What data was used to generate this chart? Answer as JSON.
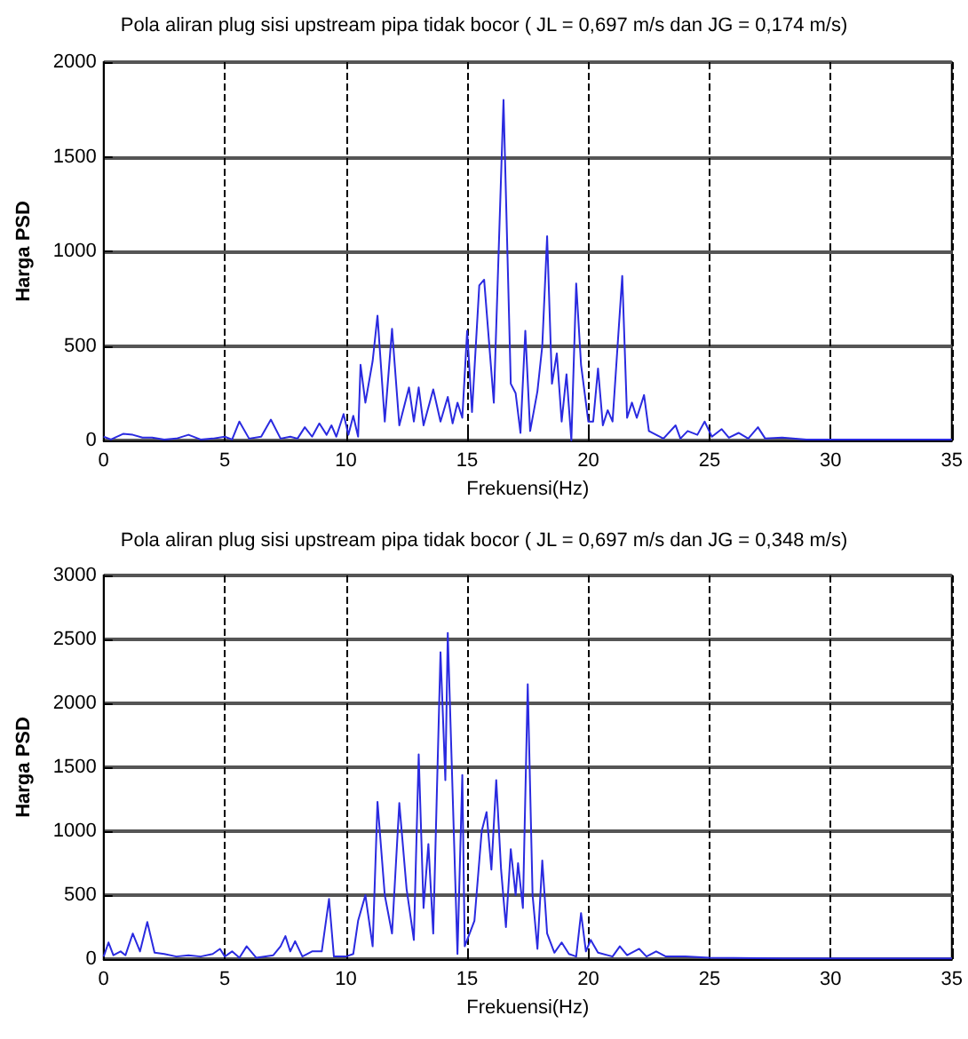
{
  "chart_data": [
    {
      "type": "line",
      "title": "Pola aliran plug sisi upstream pipa tidak bocor ( JL = 0,697 m/s dan JG = 0,174 m/s)",
      "xlabel": "Frekuensi(Hz)",
      "ylabel": "Harga PSD",
      "xlim": [
        0,
        35
      ],
      "xticks": [
        0,
        5,
        10,
        15,
        20,
        25,
        30,
        35
      ],
      "ylim": [
        0,
        2000
      ],
      "yticks": [
        0,
        500,
        1000,
        1500,
        2000
      ],
      "grid": true,
      "marker": "none",
      "line_style": "solid",
      "series": [
        {
          "color": "#2a2ae0",
          "x": [
            0,
            0.3,
            0.8,
            1.2,
            1.6,
            2,
            2.5,
            3,
            3.5,
            4,
            4.5,
            5,
            5.3,
            5.6,
            6,
            6.5,
            6.9,
            7.3,
            7.7,
            8,
            8.3,
            8.6,
            8.9,
            9.2,
            9.4,
            9.6,
            9.9,
            10.1,
            10.3,
            10.5,
            10.6,
            10.8,
            11.1,
            11.3,
            11.6,
            11.9,
            12.2,
            12.6,
            12.8,
            13,
            13.2,
            13.6,
            13.9,
            14.2,
            14.4,
            14.6,
            14.8,
            15,
            15.2,
            15.5,
            15.7,
            16.1,
            16.5,
            16.8,
            17,
            17.2,
            17.4,
            17.6,
            17.9,
            18.1,
            18.3,
            18.5,
            18.7,
            18.9,
            19.1,
            19.3,
            19.5,
            19.7,
            20,
            20.2,
            20.4,
            20.6,
            20.8,
            21,
            21.4,
            21.6,
            21.8,
            22,
            22.3,
            22.5,
            22.8,
            23.1,
            23.6,
            23.8,
            24.1,
            24.5,
            24.8,
            25.1,
            25.5,
            25.8,
            26.2,
            26.6,
            27,
            27.3,
            28,
            29,
            30,
            32,
            35
          ],
          "values": [
            20,
            5,
            35,
            30,
            15,
            15,
            5,
            10,
            30,
            5,
            10,
            20,
            5,
            100,
            10,
            20,
            110,
            10,
            20,
            10,
            70,
            20,
            90,
            30,
            80,
            20,
            140,
            30,
            130,
            20,
            400,
            200,
            420,
            660,
            100,
            590,
            80,
            280,
            100,
            280,
            80,
            270,
            100,
            230,
            90,
            200,
            120,
            580,
            150,
            820,
            850,
            200,
            1800,
            300,
            250,
            40,
            580,
            50,
            260,
            500,
            1080,
            300,
            460,
            100,
            350,
            0,
            830,
            400,
            100,
            100,
            380,
            80,
            160,
            100,
            870,
            120,
            200,
            120,
            240,
            50,
            30,
            10,
            80,
            10,
            50,
            30,
            100,
            20,
            60,
            15,
            40,
            10,
            70,
            10,
            15,
            5,
            5,
            5,
            5
          ]
        }
      ]
    },
    {
      "type": "line",
      "title": "Pola aliran plug sisi upstream pipa tidak bocor ( JL = 0,697 m/s dan JG = 0,348 m/s)",
      "xlabel": "Frekuensi(Hz)",
      "ylabel": "Harga PSD",
      "xlim": [
        0,
        35
      ],
      "xticks": [
        0,
        5,
        10,
        15,
        20,
        25,
        30,
        35
      ],
      "ylim": [
        0,
        3000
      ],
      "yticks": [
        0,
        500,
        1000,
        1500,
        2000,
        2500,
        3000
      ],
      "grid": true,
      "marker": "none",
      "line_style": "solid",
      "series": [
        {
          "color": "#2a2ae0",
          "x": [
            0,
            0.2,
            0.4,
            0.7,
            0.9,
            1.2,
            1.5,
            1.8,
            2.1,
            2.5,
            3,
            3.5,
            4,
            4.5,
            4.8,
            5,
            5.3,
            5.6,
            5.9,
            6.3,
            7,
            7.3,
            7.5,
            7.7,
            7.9,
            8.2,
            8.6,
            9,
            9.3,
            9.5,
            10,
            10.3,
            10.5,
            10.8,
            11.1,
            11.3,
            11.6,
            11.9,
            12.2,
            12.5,
            12.8,
            13,
            13.2,
            13.4,
            13.6,
            13.9,
            14.1,
            14.2,
            14.4,
            14.6,
            14.8,
            14.9,
            15.3,
            15.6,
            15.8,
            16,
            16.2,
            16.4,
            16.6,
            16.8,
            17,
            17.1,
            17.3,
            17.5,
            17.7,
            17.9,
            18.1,
            18.3,
            18.6,
            18.9,
            19.2,
            19.5,
            19.7,
            19.9,
            20.1,
            20.4,
            21,
            21.3,
            21.6,
            22.1,
            22.4,
            22.8,
            23.2,
            24,
            25,
            28,
            35
          ],
          "values": [
            20,
            130,
            30,
            60,
            30,
            200,
            60,
            290,
            50,
            40,
            20,
            30,
            20,
            40,
            80,
            20,
            60,
            10,
            100,
            10,
            30,
            100,
            180,
            60,
            140,
            20,
            60,
            60,
            470,
            20,
            20,
            40,
            300,
            500,
            100,
            1230,
            500,
            200,
            1220,
            550,
            150,
            1600,
            400,
            900,
            200,
            2400,
            1400,
            2550,
            1300,
            40,
            1440,
            100,
            300,
            1000,
            1150,
            700,
            1400,
            700,
            250,
            860,
            500,
            750,
            400,
            2150,
            500,
            80,
            770,
            200,
            50,
            130,
            40,
            20,
            360,
            60,
            150,
            50,
            20,
            100,
            30,
            80,
            20,
            60,
            20,
            20,
            10,
            5,
            5
          ]
        }
      ]
    }
  ]
}
